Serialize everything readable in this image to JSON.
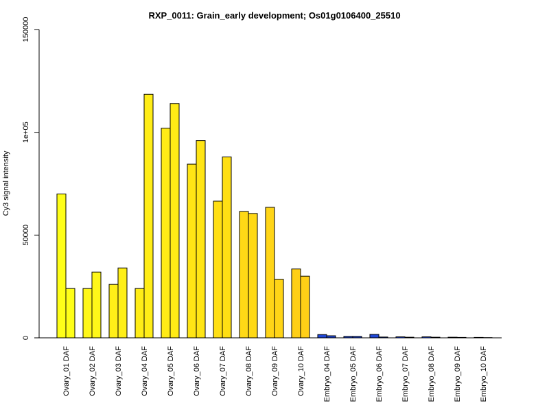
{
  "chart_data": {
    "type": "bar",
    "title": "RXP_0011: Grain_early development; Os01g0106400_25510",
    "ylabel": "Cy3 signal intensity",
    "xlabel": "",
    "ylim": [
      0,
      150000
    ],
    "yticks": [
      {
        "value": 0,
        "label": "0"
      },
      {
        "value": 50000,
        "label": "50000"
      },
      {
        "value": 100000,
        "label": "1e+05"
      },
      {
        "value": 150000,
        "label": "150000"
      }
    ],
    "categories": [
      "Ovary_01 DAF",
      "Ovary_02 DAF",
      "Ovary_03 DAF",
      "Ovary_04 DAF",
      "Ovary_05 DAF",
      "Ovary_06 DAF",
      "Ovary_07 DAF",
      "Ovary_08 DAF",
      "Ovary_09 DAF",
      "Ovary_10 DAF",
      "Embryo_04 DAF",
      "Embryo_05 DAF",
      "Embryo_06 DAF",
      "Embryo_07 DAF",
      "Embryo_08 DAF",
      "Embryo_09 DAF",
      "Embryo_10 DAF"
    ],
    "series": [
      {
        "values": [
          70000,
          24000,
          26000,
          24000,
          102000,
          84500,
          66500,
          61500,
          63500,
          33500,
          1600,
          700,
          1700,
          500,
          500,
          300,
          200
        ]
      },
      {
        "values": [
          24000,
          32000,
          34000,
          118500,
          114000,
          96000,
          88000,
          60500,
          28500,
          30000,
          1000,
          700,
          400,
          300,
          300,
          200,
          100
        ]
      }
    ],
    "colors": [
      "#ffff19",
      "#fff719",
      "#ffef18",
      "#ffed17",
      "#ffeb16",
      "#ffe515",
      "#ffdf14",
      "#ffd916",
      "#ffd517",
      "#ffcf17",
      "#1f47d6",
      "#1f47d6",
      "#1f47d6",
      "#1f47d6",
      "#1f47d6",
      "#1f47d6",
      "#1f47d6"
    ],
    "grid": false,
    "legend": "none"
  }
}
